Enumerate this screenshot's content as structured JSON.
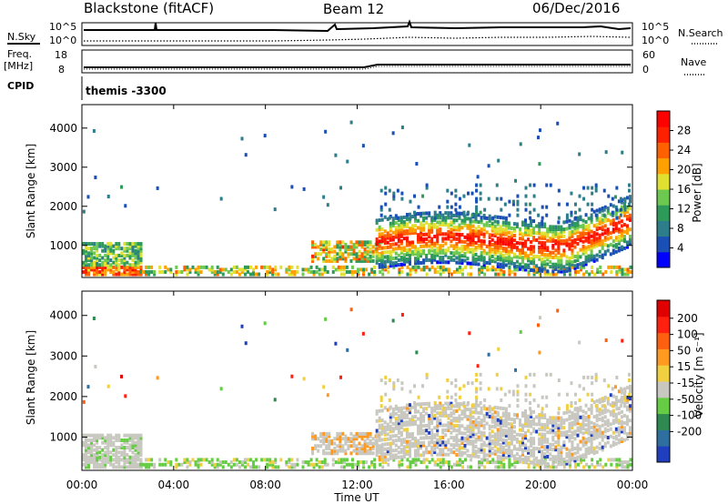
{
  "header": {
    "station": "Blackstone (fitACF)",
    "beam": "Beam 12",
    "date": "06/Dec/2016"
  },
  "panels": {
    "nsky_label": "N.Sky",
    "nsearch_label": "N.Search",
    "noise_ticks": [
      "10^5",
      "10^0"
    ],
    "freq_label_1": "Freq.",
    "freq_label_2": "[MHz]",
    "freq_ticks": [
      "18",
      "8"
    ],
    "nave_label": "Nave",
    "nave_ticks": [
      "60",
      "0"
    ],
    "cpid_label": "CPID",
    "cpid_text": "themis -3300"
  },
  "chart_data": [
    {
      "type": "heatmap",
      "name": "Power",
      "xlabel": "Time UT",
      "ylabel": "Slant Range [km]",
      "x_ticks": [
        "00:00",
        "04:00",
        "08:00",
        "12:00",
        "16:00",
        "20:00",
        "00:00"
      ],
      "y_ticks": [
        1000,
        2000,
        3000,
        4000
      ],
      "xlim_hours": [
        0,
        24
      ],
      "ylim_km": [
        180,
        4600
      ],
      "colorbar": {
        "label": "Power [dB]",
        "ticks": [
          4,
          8,
          12,
          16,
          20,
          24,
          28
        ],
        "range": [
          0,
          32
        ],
        "colors": [
          "#0000ff",
          "#1a4fb5",
          "#2e7d8a",
          "#2e9a5a",
          "#6dc850",
          "#e0e030",
          "#ffa000",
          "#ff6000",
          "#ff2000",
          "#ff0000"
        ]
      }
    },
    {
      "type": "heatmap",
      "name": "Velocity",
      "xlabel": "Time UT",
      "ylabel": "Slant Range [km]",
      "x_ticks": [
        "00:00",
        "04:00",
        "08:00",
        "12:00",
        "16:00",
        "20:00",
        "00:00"
      ],
      "y_ticks": [
        1000,
        2000,
        3000,
        4000
      ],
      "xlim_hours": [
        0,
        24
      ],
      "ylim_km": [
        180,
        4600
      ],
      "colorbar": {
        "label": "Velocity [m s⁻¹]",
        "ticks": [
          200,
          100,
          50,
          15,
          -15,
          -50,
          -100,
          -200
        ],
        "colors": [
          "#1f3fbf",
          "#2e6fa0",
          "#2e8a50",
          "#66cc44",
          "#c8c8c0",
          "#f0d040",
          "#ff9a20",
          "#ff6010",
          "#ff2010",
          "#e00000"
        ]
      }
    }
  ]
}
